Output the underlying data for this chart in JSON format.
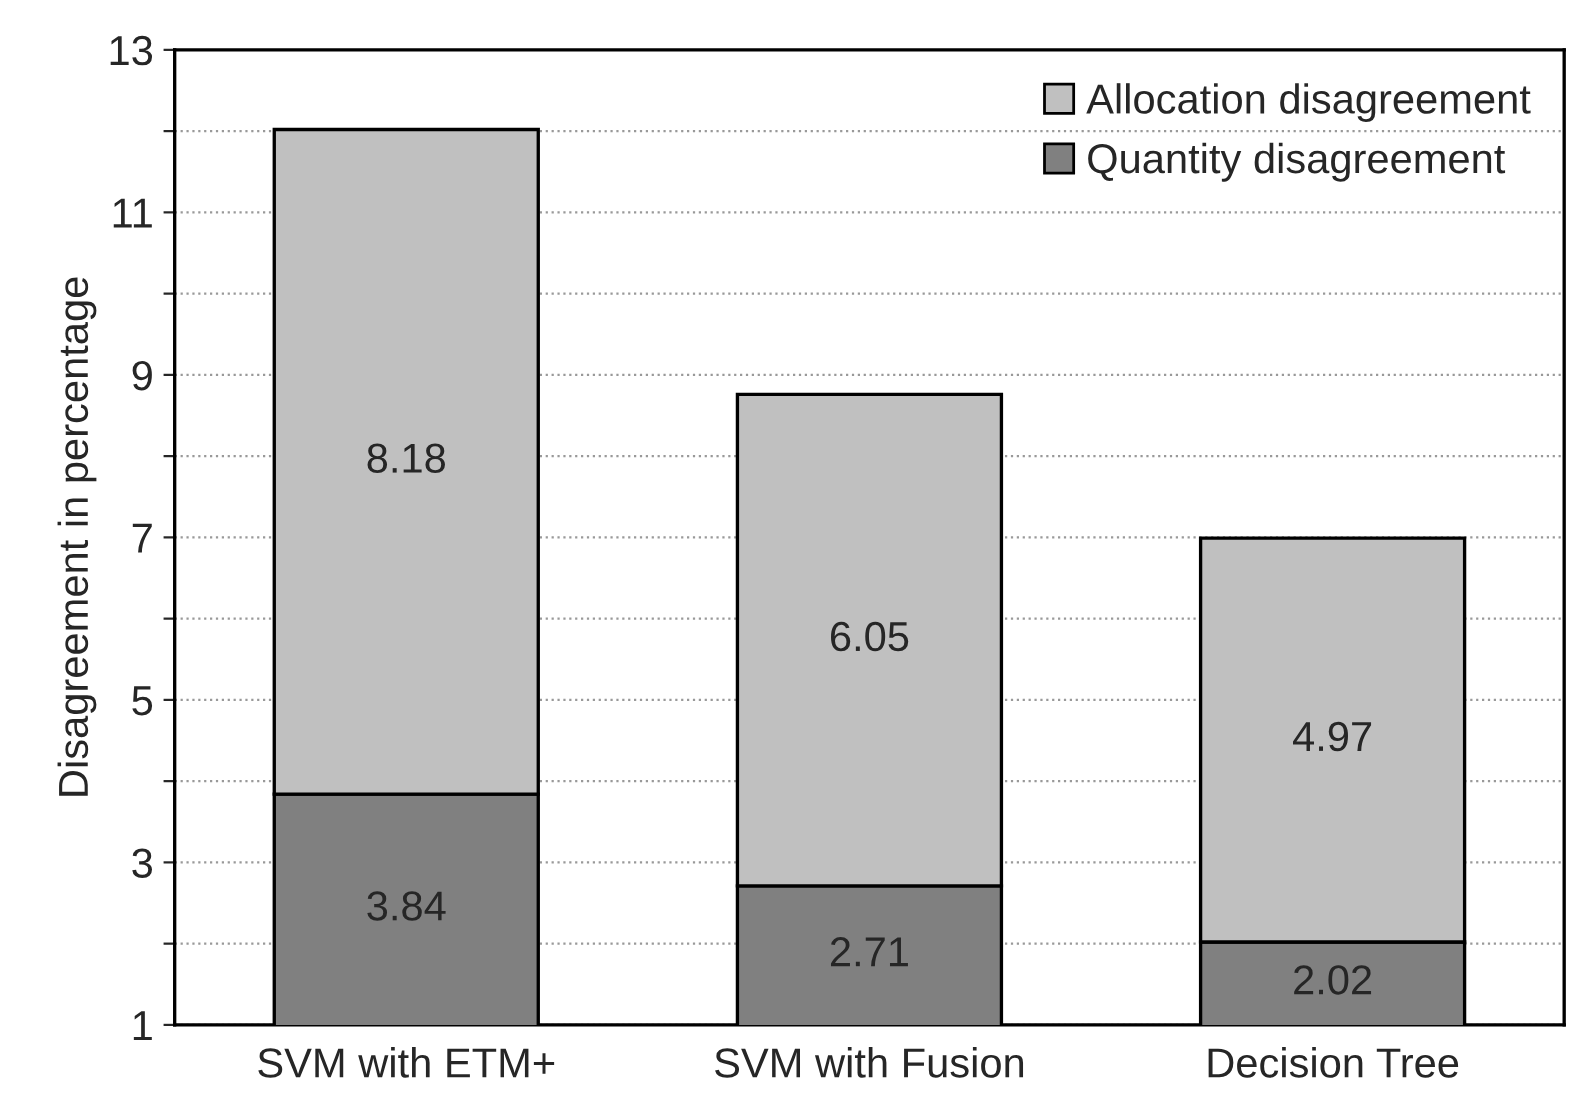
{
  "chart_data": {
    "type": "bar",
    "stacked": true,
    "ylabel": "Disagreement in percentage",
    "categories": [
      "SVM with ETM+",
      "SVM with Fusion",
      "Decision Tree"
    ],
    "series": [
      {
        "name": "Quantity disagreement",
        "color": "#808080",
        "values": [
          3.84,
          2.71,
          2.02
        ]
      },
      {
        "name": "Allocation disagreement",
        "color": "#c0c0c0",
        "values": [
          8.18,
          6.05,
          4.97
        ]
      }
    ],
    "ylim": [
      1,
      13
    ],
    "yticks": [
      1,
      {
        "value": 2,
        "label": null
      },
      3,
      {
        "value": 4,
        "label": null
      },
      5,
      {
        "value": 6,
        "label": null
      },
      7,
      {
        "value": 8,
        "label": null
      },
      9,
      {
        "value": 10,
        "label": null
      },
      11,
      {
        "value": 12,
        "label": null
      },
      13
    ],
    "grid": "y",
    "legend": "top right",
    "data_labels": true
  }
}
